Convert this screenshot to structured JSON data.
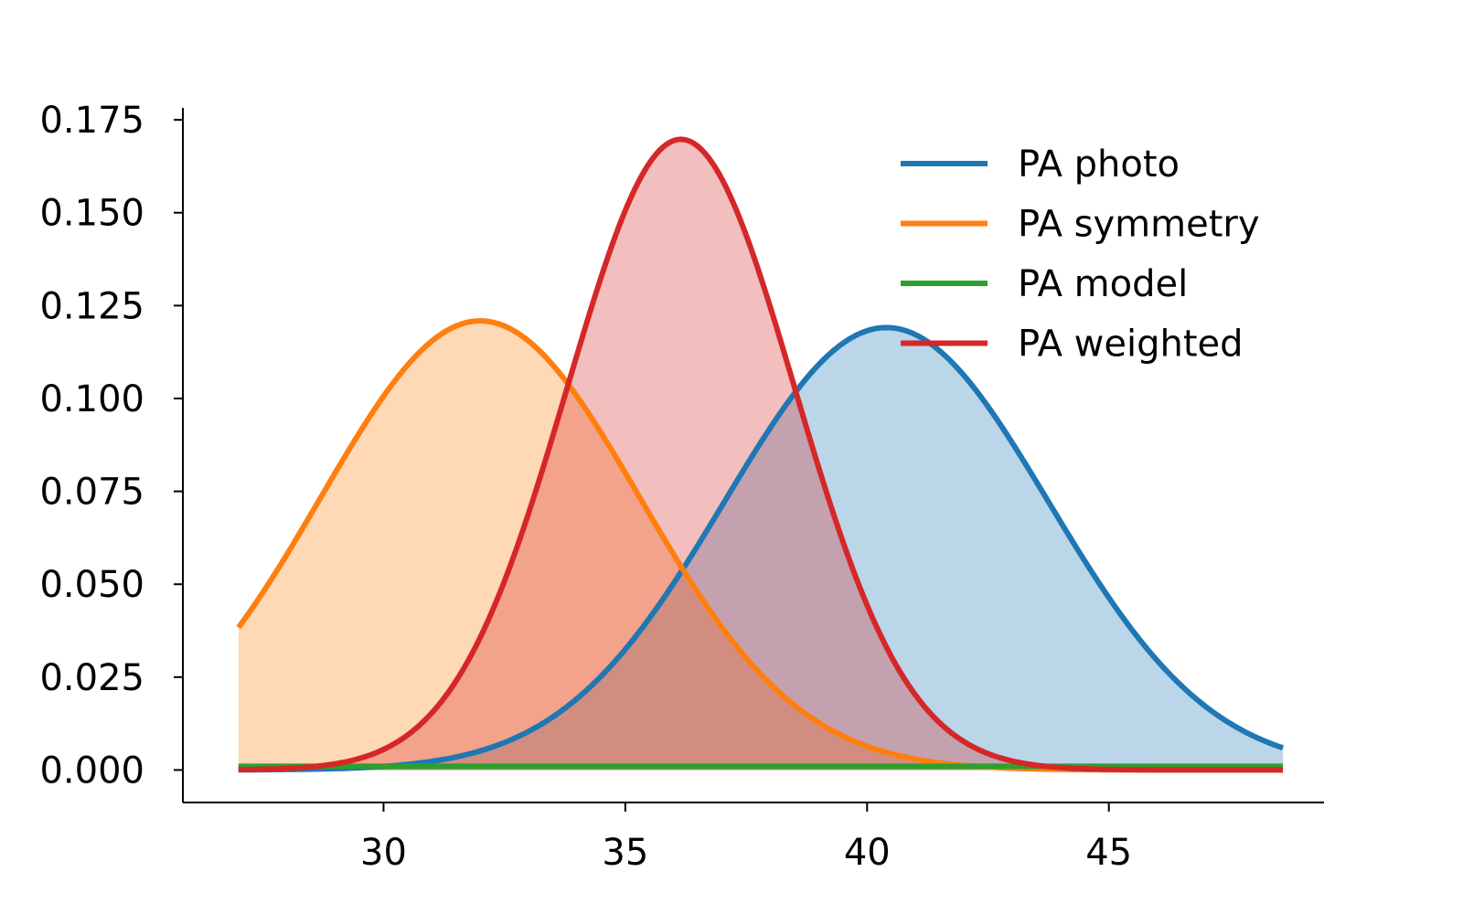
{
  "chart_data": {
    "type": "area",
    "title": "",
    "xlabel": "",
    "ylabel": "",
    "xlim": [
      25.85,
      49.45
    ],
    "ylim": [
      -0.00875,
      0.17823
    ],
    "x_ticks": [
      30,
      35,
      40,
      45
    ],
    "x_tick_labels": [
      "30",
      "35",
      "40",
      "45"
    ],
    "y_ticks": [
      0.0,
      0.025,
      0.05,
      0.075,
      0.1,
      0.125,
      0.15,
      0.175
    ],
    "y_tick_labels": [
      "0.000",
      "0.025",
      "0.050",
      "0.075",
      "0.100",
      "0.125",
      "0.150",
      "0.175"
    ],
    "grid": false,
    "legend_position": "top-right",
    "x_range": [
      27.0,
      48.6
    ],
    "series": [
      {
        "name": "PA photo",
        "color": "#1f77b4",
        "fill_opacity": 0.3,
        "distribution": "normal",
        "mean": 40.4,
        "sd": 3.35
      },
      {
        "name": "PA symmetry",
        "color": "#ff7f0e",
        "fill_opacity": 0.3,
        "distribution": "normal",
        "mean": 32.0,
        "sd": 3.3
      },
      {
        "name": "PA model",
        "color": "#2ca02c",
        "fill_opacity": 0.3,
        "distribution": "constant",
        "value": 0.001
      },
      {
        "name": "PA weighted",
        "color": "#d62728",
        "fill_opacity": 0.3,
        "distribution": "normal",
        "mean": 36.15,
        "sd": 2.35
      }
    ],
    "sample_points": {
      "x": [
        27,
        28,
        29,
        30,
        31,
        32,
        33,
        34,
        35,
        36,
        37,
        38,
        39,
        40,
        41,
        42,
        43,
        44,
        45,
        46,
        47,
        48,
        48.6
      ],
      "PA photo": [
        0.0004,
        0.0012,
        0.0019,
        0.0032,
        0.0052,
        0.0112,
        0.0195,
        0.0325,
        0.0514,
        0.0731,
        0.0928,
        0.1095,
        0.1176,
        0.1186,
        0.1117,
        0.0985,
        0.0795,
        0.0595,
        0.0402,
        0.0254,
        0.0149,
        0.0078,
        0.0055
      ],
      "PA symmetry": [
        0.0385,
        0.0623,
        0.0858,
        0.1063,
        0.1163,
        0.1209,
        0.1163,
        0.1009,
        0.0782,
        0.0543,
        0.0338,
        0.0192,
        0.0097,
        0.0042,
        0.0016,
        0.0006,
        0.0002,
        0.0001,
        0.0,
        0.0,
        0.0,
        0.0,
        0.0
      ],
      "PA model": [
        0.001,
        0.001,
        0.001,
        0.001,
        0.001,
        0.001,
        0.001,
        0.001,
        0.001,
        0.001,
        0.001,
        0.001,
        0.001,
        0.001,
        0.001,
        0.001,
        0.001,
        0.001,
        0.001,
        0.001,
        0.001,
        0.001,
        0.001
      ],
      "PA weighted": [
        0.0,
        0.0006,
        0.0025,
        0.0087,
        0.0239,
        0.0501,
        0.0845,
        0.1267,
        0.1574,
        0.1694,
        0.1586,
        0.1245,
        0.0816,
        0.0444,
        0.0199,
        0.0074,
        0.0022,
        0.0005,
        0.0001,
        0.0,
        0.0,
        0.0,
        0.0
      ]
    }
  }
}
